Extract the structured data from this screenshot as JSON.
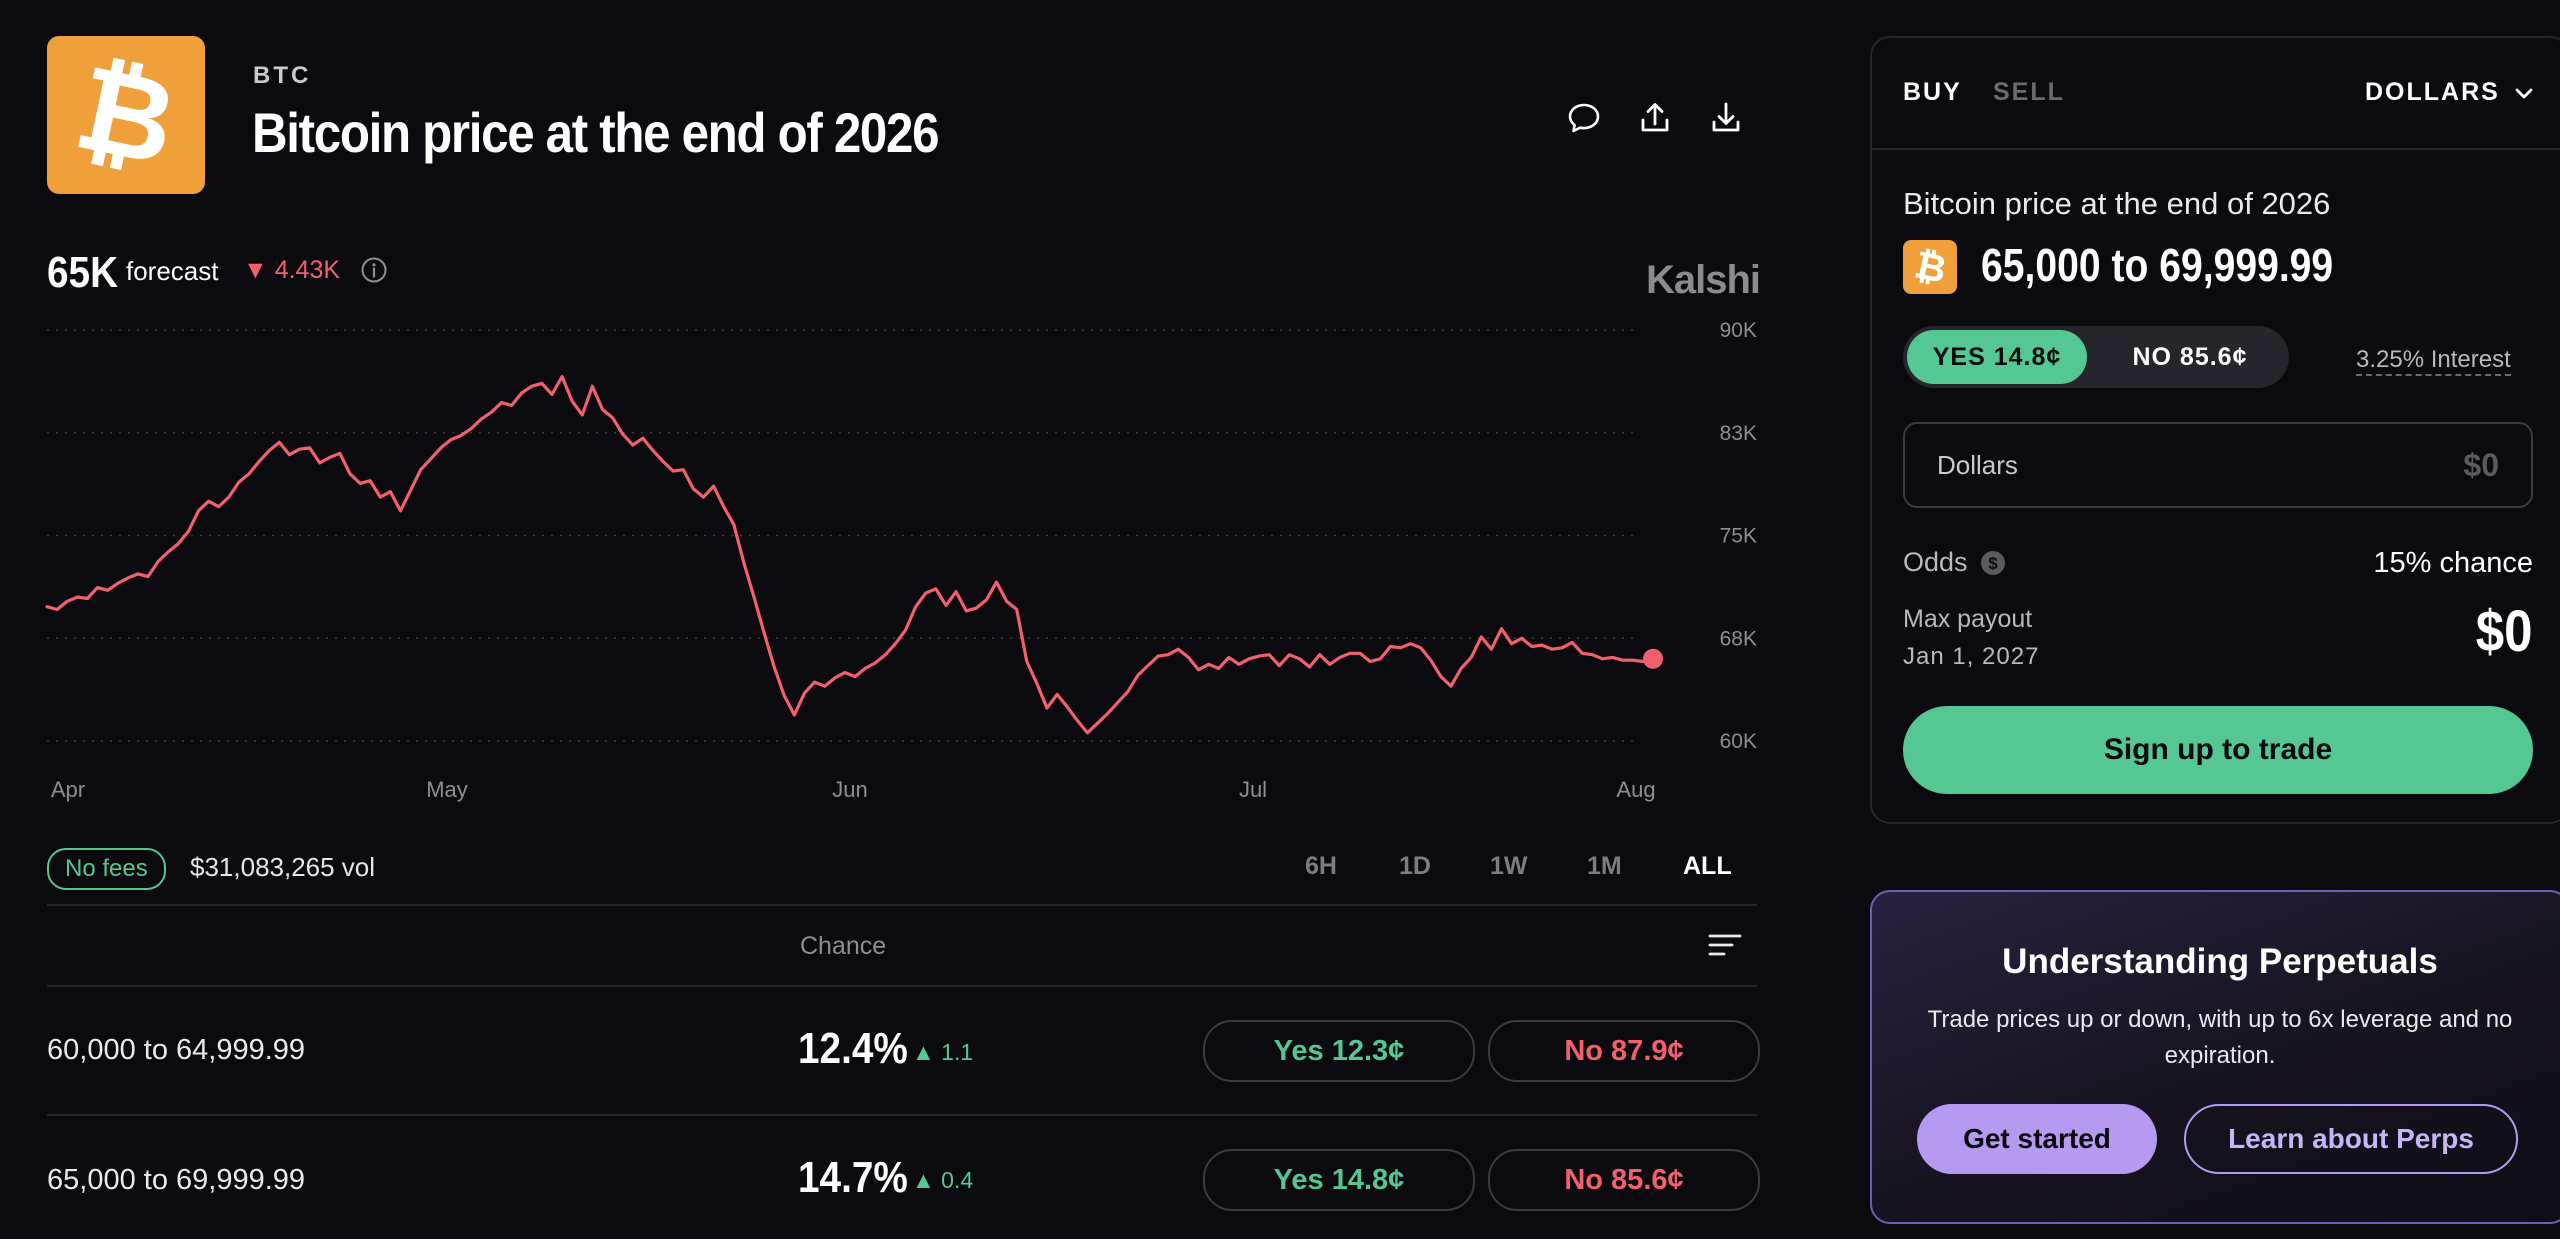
{
  "header": {
    "ticker": "BTC",
    "title": "Bitcoin price at the end of 2026",
    "logo_glyph": "₿",
    "icons": [
      "comment-icon",
      "share-icon",
      "download-icon"
    ]
  },
  "forecast": {
    "value": "65K",
    "label": "forecast",
    "change": "▼ 4.43K",
    "brand": "Kalshi"
  },
  "colors": {
    "background": "#0b0a0f",
    "line": "#f2606e",
    "yes": "#55c793",
    "no": "#f2606e",
    "bitcoin": "#f0a03a",
    "perps_accent": "#b69af2"
  },
  "chart_data": {
    "type": "line",
    "x_tick_labels": [
      "Apr",
      "May",
      "Jun",
      "Jul",
      "Aug"
    ],
    "y_tick_labels": [
      "90K",
      "83K",
      "75K",
      "68K",
      "60K"
    ],
    "y_ticks": [
      90,
      82.5,
      75,
      67.5,
      60
    ],
    "ylim": [
      60,
      90
    ],
    "y_unit": "K",
    "grid": true,
    "series": [
      {
        "values": [
          69.8,
          69.6,
          70.2,
          70.5,
          70.4,
          71.2,
          71.0,
          71.5,
          71.9,
          72.2,
          72.0,
          73.1,
          73.8,
          74.4,
          75.3,
          76.8,
          77.5,
          77.1,
          77.8,
          78.9,
          79.5,
          80.4,
          81.2,
          81.8,
          80.9,
          81.3,
          81.4,
          80.3,
          80.7,
          81.0,
          79.5,
          78.8,
          79.0,
          77.8,
          78.2,
          76.8,
          78.3,
          79.8,
          80.6,
          81.4,
          82.0,
          82.3,
          82.8,
          83.5,
          84.0,
          84.7,
          84.5,
          85.4,
          85.9,
          86.1,
          85.3,
          86.6,
          84.8,
          83.8,
          85.9,
          84.2,
          83.6,
          82.4,
          81.6,
          82.1,
          81.2,
          80.4,
          79.7,
          79.8,
          78.4,
          77.8,
          78.6,
          77.1,
          75.8,
          73.0,
          70.5,
          67.9,
          65.4,
          63.3,
          61.9,
          63.5,
          64.3,
          64.0,
          64.6,
          65.0,
          64.7,
          65.3,
          65.7,
          66.3,
          67.1,
          68.1,
          69.8,
          70.8,
          71.1,
          69.9,
          70.9,
          69.5,
          69.7,
          70.3,
          71.6,
          70.2,
          69.6,
          65.8,
          64.2,
          62.4,
          63.4,
          62.5,
          61.5,
          60.6,
          61.3,
          62.0,
          62.8,
          63.6,
          64.8,
          65.5,
          66.2,
          66.3,
          66.7,
          66.1,
          65.2,
          65.6,
          65.3,
          66.1,
          65.6,
          66.0,
          66.2,
          66.3,
          65.5,
          66.3,
          66.0,
          65.4,
          66.3,
          65.6,
          66.1,
          66.4,
          66.4,
          65.8,
          66.0,
          66.9,
          66.8,
          67.1,
          66.8,
          65.9,
          64.7,
          64.0,
          65.3,
          66.1,
          67.6,
          66.7,
          68.2,
          67.1,
          67.5,
          66.9,
          67.0,
          66.7,
          66.8,
          67.2,
          66.4,
          66.3,
          66.0,
          66.1,
          65.9,
          65.9,
          65.8,
          66.0
        ]
      }
    ]
  },
  "volume": {
    "no_fees": "No fees",
    "vol": "$31,083,265 vol"
  },
  "ranges": [
    "6H",
    "1D",
    "1W",
    "1M",
    "ALL"
  ],
  "active_range": "ALL",
  "table": {
    "chance_header": "Chance",
    "rows": [
      {
        "label": "60,000 to 64,999.99",
        "chance": "12.4%",
        "delta": "▲ 1.1",
        "yes": "Yes 12.3¢",
        "no": "No 87.9¢"
      },
      {
        "label": "65,000 to 69,999.99",
        "chance": "14.7%",
        "delta": "▲ 0.4",
        "yes": "Yes 14.8¢",
        "no": "No 85.6¢"
      }
    ]
  },
  "trade": {
    "tab_buy": "BUY",
    "tab_sell": "SELL",
    "unit": "DOLLARS",
    "market_title": "Bitcoin price at the end of 2026",
    "range": "65,000 to 69,999.99",
    "yes": "YES 14.8¢",
    "no": "NO 85.6¢",
    "interest": "3.25% Interest",
    "input_label": "Dollars",
    "input_value": "$0",
    "odds_label": "Odds",
    "odds_value": "15% chance",
    "max_payout_label": "Max payout",
    "max_payout_date": "Jan 1, 2027",
    "max_payout_value": "$0",
    "signup": "Sign up to trade"
  },
  "perps": {
    "title": "Understanding Perpetuals",
    "description": "Trade prices up or down, with up to 6x leverage and no expiration.",
    "get_started": "Get started",
    "learn": "Learn about Perps"
  }
}
